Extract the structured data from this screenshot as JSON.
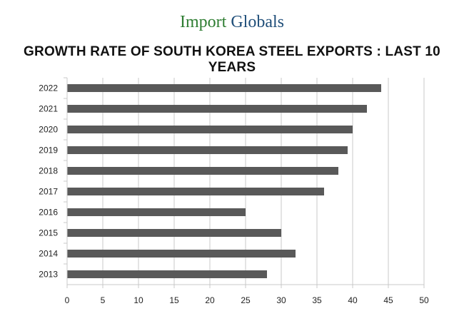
{
  "logo": {
    "part1": "Import ",
    "part2": "Globals"
  },
  "chart_data": {
    "type": "bar",
    "orientation": "horizontal",
    "title": "GROWTH RATE OF SOUTH KOREA STEEL EXPORTS : LAST 10 YEARS",
    "categories": [
      "2022",
      "2021",
      "2020",
      "2019",
      "2018",
      "2017",
      "2016",
      "2015",
      "2014",
      "2013"
    ],
    "values": [
      44,
      42,
      40,
      39.3,
      38,
      36,
      25,
      30,
      32,
      28
    ],
    "xlim": [
      0,
      50
    ],
    "xticks": [
      0,
      5,
      10,
      15,
      20,
      25,
      30,
      35,
      40,
      45,
      50
    ],
    "xlabel": "",
    "ylabel": "",
    "grid": true,
    "bar_color": "#595959",
    "grid_color": "#c8c8c8"
  }
}
